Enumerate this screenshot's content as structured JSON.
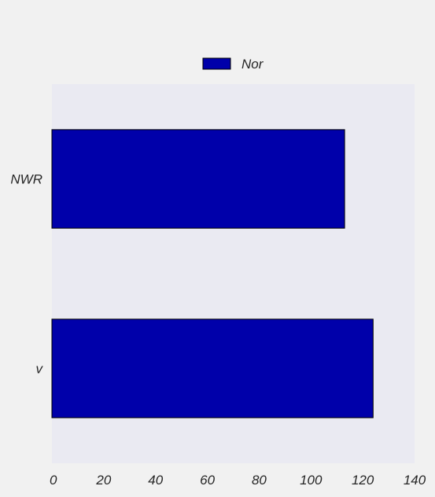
{
  "chart_data": {
    "type": "bar",
    "orientation": "horizontal",
    "title": "",
    "xlabel": "",
    "ylabel": "",
    "categories": [
      "NWR",
      "v"
    ],
    "series": [
      {
        "name": "Nor",
        "values": [
          113,
          124
        ],
        "color": "#0000aa"
      }
    ],
    "xlim": [
      0,
      140
    ],
    "xticks": [
      0,
      20,
      40,
      60,
      80,
      100,
      120,
      140
    ],
    "xtick_labels": [
      "0",
      "20",
      "40",
      "60",
      "80",
      "100",
      "120",
      "140"
    ],
    "grid": false,
    "legend_position": "top-center"
  },
  "colors": {
    "page_background": "#f1f1f1",
    "plot_background": "#eaeaf2",
    "bar_fill": "#0000aa",
    "bar_edge": "#000000",
    "text": "#262626"
  }
}
